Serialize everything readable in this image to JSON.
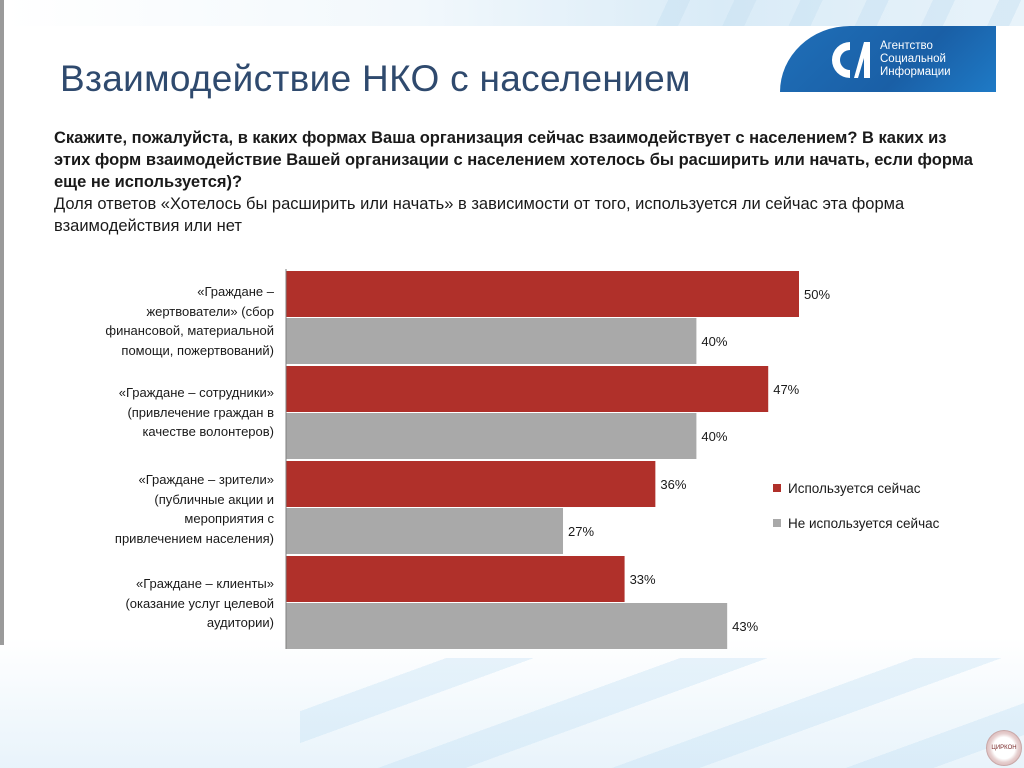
{
  "slide": {
    "title": "Взаимодействие НКО с населением"
  },
  "logo": {
    "line1": "Агентство",
    "line2": "Социальной",
    "line3": "Информации"
  },
  "question": {
    "bold_text": "Скажите, пожалуйста, в каких формах Ваша организация сейчас взаимодействует с населением? В каких из этих форм взаимодействие Вашей организации с населением хотелось бы расширить или начать, если форма еще не используется)?",
    "sub_text": "Доля ответов «Хотелось бы расширить или начать» в зависимости от того, используется ли сейчас эта форма взаимодействия или нет"
  },
  "colors": {
    "used_now": "#b0302a",
    "not_used_now": "#a9a9a9",
    "title": "#2f4a6e",
    "logo_blue": "#1f6fb8"
  },
  "badge": {
    "text": "ЦИРКОН"
  },
  "chart_data": {
    "type": "bar",
    "orientation": "horizontal",
    "categories": [
      "«Граждане – жертвователи» (сбор финансовой, материальной помощи, пожертвований)",
      "«Граждане – сотрудники» (привлечение граждан в качестве волонтеров)",
      "«Граждане – зрители» (публичные акции и мероприятия с привлечением населения)",
      "«Граждане – клиенты» (оказание услуг целевой аудитории)"
    ],
    "category_lines": [
      [
        "«Граждане –",
        "жертвователи» (сбор",
        "финансовой, материальной",
        "помощи, пожертвований)"
      ],
      [
        "«Граждане – сотрудники»",
        "(привлечение граждан в",
        "качестве волонтеров)"
      ],
      [
        "«Граждане – зрители»",
        "(публичные акции и",
        "мероприятия с",
        "привлечением населения)"
      ],
      [
        "«Граждане – клиенты»",
        "(оказание услуг целевой",
        "аудитории)"
      ]
    ],
    "series": [
      {
        "name": "Используется сейчас",
        "values": [
          50,
          47,
          36,
          33
        ],
        "labels": [
          "50%",
          "47%",
          "36%",
          "33%"
        ]
      },
      {
        "name": "Не используется сейчас",
        "values": [
          40,
          40,
          27,
          43
        ],
        "labels": [
          "40%",
          "40%",
          "27%",
          "43%"
        ]
      }
    ],
    "value_unit": "%",
    "xlim": [
      0,
      100
    ],
    "grid": false,
    "legend_position": "right"
  }
}
